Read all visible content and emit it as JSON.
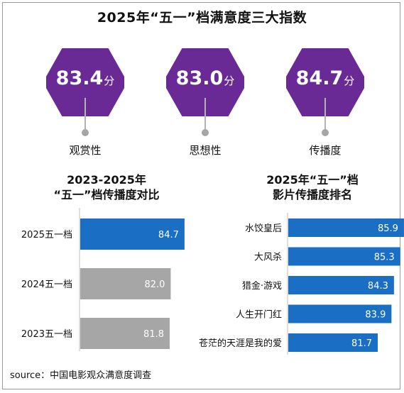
{
  "title": "2025年“五一”档满意度三大指数",
  "indices": [
    {
      "value": "83.4",
      "unit": "分",
      "label": "观赏性"
    },
    {
      "value": "83.0",
      "unit": "分",
      "label": "思想性"
    },
    {
      "value": "84.7",
      "unit": "分",
      "label": "传播度"
    }
  ],
  "colors": {
    "hexagon": "#6a2a96",
    "bar_blue": "#1a6fc4",
    "bar_gray": "#a6a6a6",
    "stem": "#b3b3b3"
  },
  "left_section": {
    "title_line1": "2023-2025年",
    "title_line2": "“五一”档传播度对比"
  },
  "right_section": {
    "title_line1": "2025年“五一”档",
    "title_line2": "影片传播度排名"
  },
  "source": "source：中国电影观众满意度调查",
  "chart_data": [
    {
      "type": "bar",
      "orientation": "horizontal",
      "title": "2023-2025年“五一”档传播度对比",
      "categories": [
        "2025五一档",
        "2024五一档",
        "2023五一档"
      ],
      "values": [
        84.7,
        82.0,
        81.8
      ],
      "labels": [
        "84.7",
        "82.0",
        "81.8"
      ],
      "bar_colors": [
        "#1a6fc4",
        "#a6a6a6",
        "#a6a6a6"
      ]
    },
    {
      "type": "bar",
      "orientation": "horizontal",
      "title": "2025年“五一”档影片传播度排名",
      "categories": [
        "水饺皇后",
        "大风杀",
        "猎金·游戏",
        "人生开门红",
        "苍茫的天涯是我的爱"
      ],
      "values": [
        85.9,
        85.3,
        84.3,
        83.9,
        81.7
      ],
      "labels": [
        "85.9",
        "85.3",
        "84.3",
        "83.9",
        "81.7"
      ],
      "bar_colors": [
        "#1a6fc4",
        "#1a6fc4",
        "#1a6fc4",
        "#1a6fc4",
        "#1a6fc4"
      ]
    }
  ]
}
